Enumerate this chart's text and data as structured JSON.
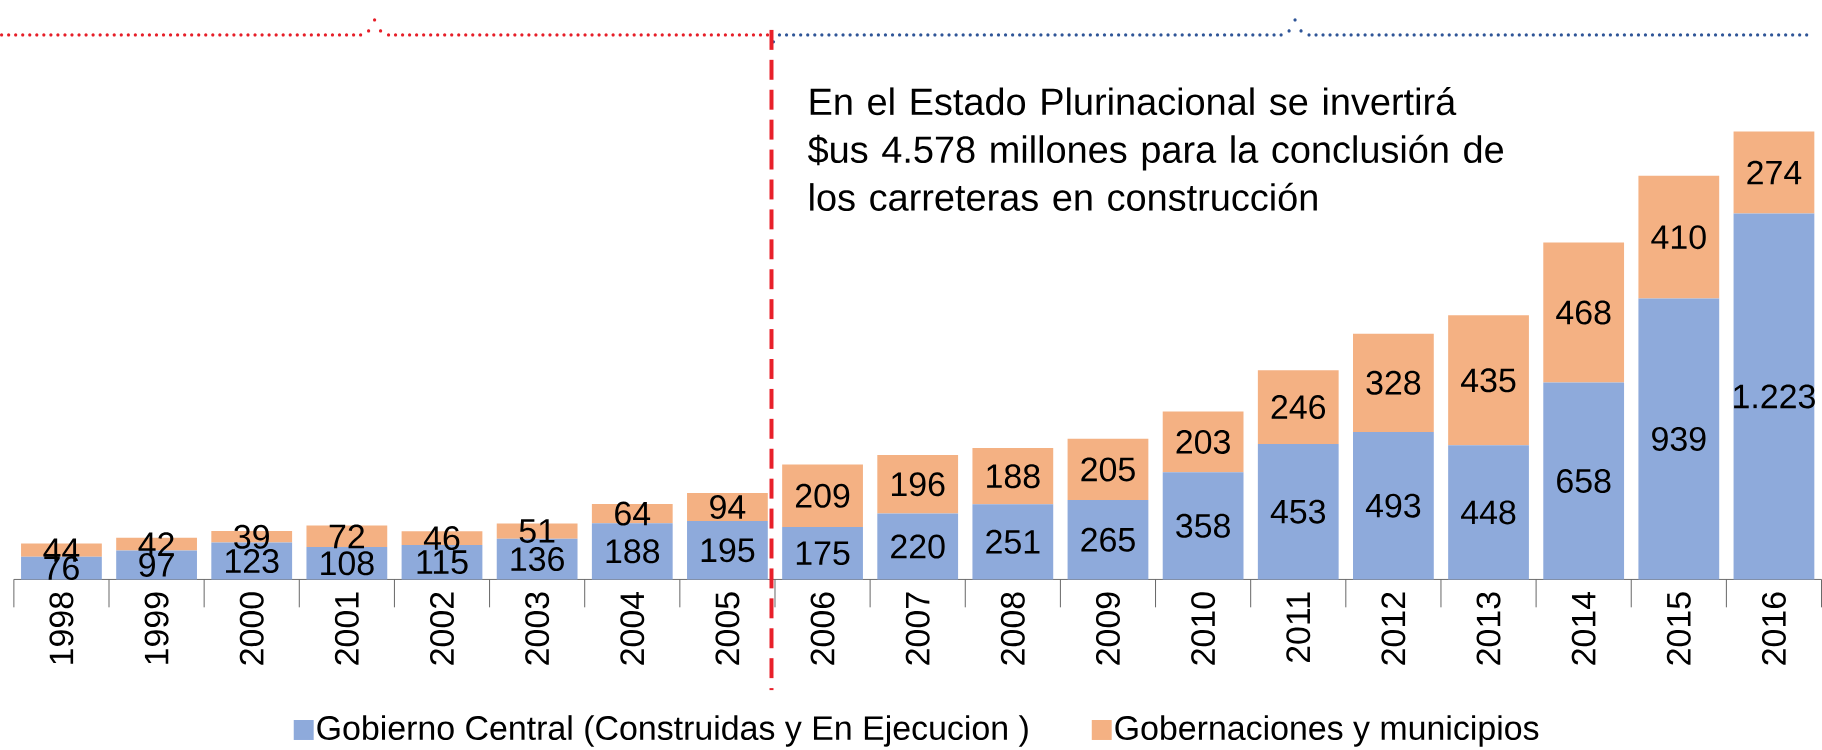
{
  "chart_data": {
    "type": "bar",
    "stacked": true,
    "categories": [
      "1998",
      "1999",
      "2000",
      "2001",
      "2002",
      "2003",
      "2004",
      "2005",
      "2006",
      "2007",
      "2008",
      "2009",
      "2010",
      "2011",
      "2012",
      "2013",
      "2014",
      "2015",
      "2016"
    ],
    "series": [
      {
        "name": "Gobierno Central (Construidas y En Ejecucion )",
        "color": "#8eaadb",
        "values": [
          76,
          97,
          123,
          108,
          115,
          136,
          188,
          195,
          175,
          220,
          251,
          265,
          358,
          453,
          493,
          448,
          658,
          939,
          1223
        ],
        "value_labels": [
          "76",
          "97",
          "123",
          "108",
          "115",
          "136",
          "188",
          "195",
          "175",
          "220",
          "251",
          "265",
          "358",
          "453",
          "493",
          "448",
          "658",
          "939",
          "1.223"
        ]
      },
      {
        "name": "Gobernaciones y municipios",
        "color": "#f4b183",
        "values": [
          44,
          42,
          39,
          72,
          46,
          51,
          64,
          94,
          209,
          196,
          188,
          205,
          203,
          246,
          328,
          435,
          468,
          410,
          274
        ],
        "value_labels": [
          "44",
          "42",
          "39",
          "72",
          "46",
          "51",
          "64",
          "94",
          "209",
          "196",
          "188",
          "205",
          "203",
          "246",
          "328",
          "435",
          "468",
          "410",
          "274"
        ]
      }
    ],
    "annotations": [
      "En el Estado Plurinacional se invertirá $us 4.578 millones para la conclusión de los carreteras en construcción"
    ],
    "legend": "bottom"
  }
}
